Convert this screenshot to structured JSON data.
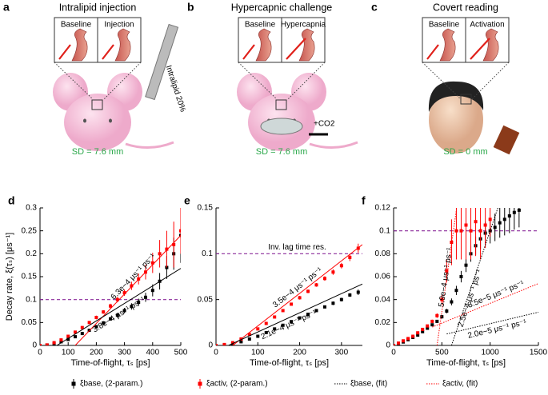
{
  "panels": [
    {
      "letter": "a",
      "title": "Intralipid injection",
      "inset_labels": [
        "Baseline",
        "Injection"
      ],
      "extra": "Intralipid 20%",
      "sd": "SD = 7.6 mm"
    },
    {
      "letter": "b",
      "title": "Hypercapnic challenge",
      "inset_labels": [
        "Baseline",
        "Hypercapnia"
      ],
      "extra": "+CO2",
      "sd": "SD = 7.6 mm"
    },
    {
      "letter": "c",
      "title": "Covert reading",
      "inset_labels": [
        "Baseline",
        "Activation"
      ],
      "sd": "SD = 0 mm"
    }
  ],
  "legend": [
    {
      "name": "ξbase, (2-param.)",
      "color": "#000000",
      "style": "points"
    },
    {
      "name": "ξactiv, (2-param.)",
      "color": "#ff0000",
      "style": "points"
    },
    {
      "name": "ξbase, (fit)",
      "color": "#000000",
      "style": "dotted"
    },
    {
      "name": "ξactiv, (fit)",
      "color": "#ff0000",
      "style": "dotted"
    }
  ],
  "chart_data": [
    {
      "type": "scatter",
      "letter": "d",
      "ylabel": "Decay rate, ξ(τₛ) [μs⁻¹]",
      "xlabel": "Time-of-flight, τₛ [ps]",
      "xlim": [
        0,
        500
      ],
      "xticks": [
        0,
        100,
        200,
        300,
        400,
        500
      ],
      "ylim": [
        0,
        0.3
      ],
      "yticks": [
        0,
        0.05,
        0.1,
        0.15,
        0.2,
        0.25,
        0.3
      ],
      "hline": 0.1,
      "hline_color": "#8b2a9b",
      "series": [
        {
          "kind": "points",
          "color": "#000000",
          "x": [
            0,
            25,
            50,
            75,
            100,
            125,
            150,
            175,
            200,
            225,
            250,
            275,
            300,
            325,
            350,
            375,
            400,
            425,
            450,
            475,
            500
          ],
          "values": [
            0,
            0.001,
            0.004,
            0.008,
            0.013,
            0.019,
            0.026,
            0.033,
            0.041,
            0.049,
            0.058,
            0.066,
            0.076,
            0.085,
            0.094,
            0.105,
            0.12,
            0.14,
            0.17,
            0.2,
            0.24
          ],
          "errors": [
            0.001,
            0.001,
            0.001,
            0.002,
            0.002,
            0.002,
            0.003,
            0.003,
            0.003,
            0.004,
            0.004,
            0.005,
            0.006,
            0.007,
            0.008,
            0.01,
            0.013,
            0.018,
            0.025,
            0.035,
            0.06
          ]
        },
        {
          "kind": "points",
          "color": "#ff0000",
          "x": [
            0,
            25,
            50,
            75,
            100,
            125,
            150,
            175,
            200,
            225,
            250,
            275,
            300,
            325,
            350,
            375,
            400,
            425,
            450,
            475,
            500
          ],
          "values": [
            0,
            0.001,
            0.006,
            0.012,
            0.02,
            0.029,
            0.039,
            0.05,
            0.061,
            0.073,
            0.086,
            0.1,
            0.115,
            0.13,
            0.145,
            0.16,
            0.18,
            0.2,
            0.21,
            0.22,
            0.25
          ],
          "errors": [
            0.001,
            0.001,
            0.001,
            0.002,
            0.002,
            0.002,
            0.003,
            0.003,
            0.004,
            0.004,
            0.005,
            0.006,
            0.007,
            0.009,
            0.012,
            0.016,
            0.022,
            0.03,
            0.04,
            0.05,
            0.05
          ]
        },
        {
          "kind": "fit",
          "style": "solid",
          "color": "#ff0000",
          "x": [
            125,
            500
          ],
          "values": [
            0,
            0.24
          ],
          "label": "6.3e−4 μs⁻¹ ps⁻¹"
        },
        {
          "kind": "fit",
          "style": "solid",
          "color": "#000000",
          "x": [
            60,
            500
          ],
          "values": [
            0,
            0.168
          ],
          "label": "3.8e−4 μs⁻¹ ps⁻¹"
        }
      ]
    },
    {
      "type": "scatter",
      "letter": "e",
      "xlabel": "Time-of-flight, τₛ [ps]",
      "xlim": [
        0,
        350
      ],
      "xticks": [
        0,
        100,
        200,
        300
      ],
      "ylim": [
        0,
        0.15
      ],
      "yticks": [
        0,
        0.05,
        0.1,
        0.15
      ],
      "hline": 0.1,
      "hline_color": "#8b2a9b",
      "hline_label": "Inv. lag time res.",
      "series": [
        {
          "kind": "points",
          "color": "#000000",
          "x": [
            0,
            20,
            40,
            60,
            80,
            100,
            120,
            140,
            160,
            180,
            200,
            220,
            240,
            260,
            280,
            300,
            320,
            340
          ],
          "values": [
            0,
            0.0005,
            0.002,
            0.004,
            0.007,
            0.01,
            0.014,
            0.018,
            0.022,
            0.026,
            0.03,
            0.034,
            0.038,
            0.042,
            0.046,
            0.05,
            0.055,
            0.058
          ],
          "errors": [
            0.0005,
            0.0005,
            0.0005,
            0.0005,
            0.0008,
            0.001,
            0.001,
            0.001,
            0.001,
            0.001,
            0.0012,
            0.0012,
            0.0015,
            0.0015,
            0.002,
            0.002,
            0.002,
            0.003
          ]
        },
        {
          "kind": "points",
          "color": "#ff0000",
          "x": [
            0,
            20,
            40,
            60,
            80,
            100,
            120,
            140,
            160,
            180,
            200,
            220,
            240,
            260,
            280,
            300,
            320,
            340
          ],
          "values": [
            0,
            0.001,
            0.003,
            0.007,
            0.012,
            0.018,
            0.024,
            0.031,
            0.038,
            0.045,
            0.052,
            0.059,
            0.066,
            0.073,
            0.08,
            0.087,
            0.096,
            0.106
          ],
          "errors": [
            0.0005,
            0.0005,
            0.0005,
            0.001,
            0.001,
            0.001,
            0.0012,
            0.0012,
            0.0015,
            0.0015,
            0.002,
            0.002,
            0.002,
            0.0025,
            0.003,
            0.003,
            0.004,
            0.005
          ]
        },
        {
          "kind": "fit",
          "style": "solid",
          "color": "#ff0000",
          "x": [
            40,
            350
          ],
          "values": [
            0,
            0.11
          ],
          "label": "3.5e−4 μs⁻¹ ps⁻¹"
        },
        {
          "kind": "fit",
          "style": "solid",
          "color": "#000000",
          "x": [
            30,
            350
          ],
          "values": [
            0,
            0.067
          ],
          "label": "2.1e−4 μs⁻¹ ps⁻¹"
        }
      ]
    },
    {
      "type": "scatter",
      "letter": "f",
      "xlabel": "Time-of-flight, τₛ [ps]",
      "xlim": [
        0,
        1500
      ],
      "xticks": [
        0,
        500,
        1000,
        1500
      ],
      "ylim": [
        0,
        0.12
      ],
      "yticks": [
        0,
        0.02,
        0.04,
        0.06,
        0.08,
        0.1,
        0.12
      ],
      "hline": 0.1,
      "hline_color": "#8b2a9b",
      "series": [
        {
          "kind": "points",
          "color": "#000000",
          "x": [
            0,
            50,
            100,
            150,
            200,
            250,
            300,
            350,
            400,
            450,
            500,
            550,
            600,
            650,
            700,
            750,
            800,
            850,
            900,
            950,
            1000,
            1050,
            1100,
            1150,
            1200,
            1250,
            1300
          ],
          "values": [
            0,
            0.001,
            0.003,
            0.005,
            0.007,
            0.009,
            0.012,
            0.015,
            0.018,
            0.021,
            0.025,
            0.03,
            0.038,
            0.048,
            0.06,
            0.07,
            0.08,
            0.087,
            0.093,
            0.098,
            0.1,
            0.103,
            0.107,
            0.11,
            0.113,
            0.116,
            0.118
          ],
          "errors": [
            0.0005,
            0.0005,
            0.0005,
            0.0005,
            0.0005,
            0.0005,
            0.0008,
            0.0008,
            0.001,
            0.001,
            0.0015,
            0.002,
            0.003,
            0.004,
            0.005,
            0.006,
            0.007,
            0.008,
            0.009,
            0.01,
            0.011,
            0.012,
            0.013,
            0.014,
            0.015,
            0.015,
            0.015
          ]
        },
        {
          "kind": "points",
          "color": "#ff0000",
          "x": [
            0,
            50,
            100,
            150,
            200,
            250,
            300,
            350,
            400,
            450,
            500,
            550,
            600,
            650,
            700,
            750,
            800,
            850,
            900,
            950,
            1000
          ],
          "values": [
            0,
            0.002,
            0.004,
            0.006,
            0.008,
            0.011,
            0.014,
            0.017,
            0.021,
            0.026,
            0.04,
            0.065,
            0.09,
            0.1,
            0.1,
            0.105,
            0.1,
            0.108,
            0.1,
            0.105,
            0.11
          ],
          "errors": [
            0.0005,
            0.0005,
            0.0005,
            0.0005,
            0.0005,
            0.0008,
            0.001,
            0.001,
            0.0015,
            0.002,
            0.004,
            0.01,
            0.02,
            0.025,
            0.025,
            0.03,
            0.025,
            0.03,
            0.025,
            0.02,
            0.015
          ]
        },
        {
          "kind": "fit",
          "style": "dotted",
          "color": "#ff0000",
          "x": [
            450,
            650
          ],
          "values": [
            0,
            0.118
          ],
          "label": "5.9e−4 μs⁻¹ ps⁻¹"
        },
        {
          "kind": "fit",
          "style": "dotted",
          "color": "#000000",
          "x": [
            600,
            1080
          ],
          "values": [
            0,
            0.12
          ],
          "label": "2.5e−4 μs⁻¹ ps⁻¹"
        },
        {
          "kind": "fit",
          "style": "dotted",
          "color": "#ff0000",
          "x": [
            400,
            1500
          ],
          "values": [
            0.016,
            0.054
          ],
          "label": "3.5e−5 μs⁻¹ ps⁻¹"
        },
        {
          "kind": "fit",
          "style": "dotted",
          "color": "#000000",
          "x": [
            550,
            1500
          ],
          "values": [
            0.01,
            0.029
          ],
          "label": "2.0e−5 μs⁻¹ ps⁻¹"
        }
      ]
    }
  ]
}
